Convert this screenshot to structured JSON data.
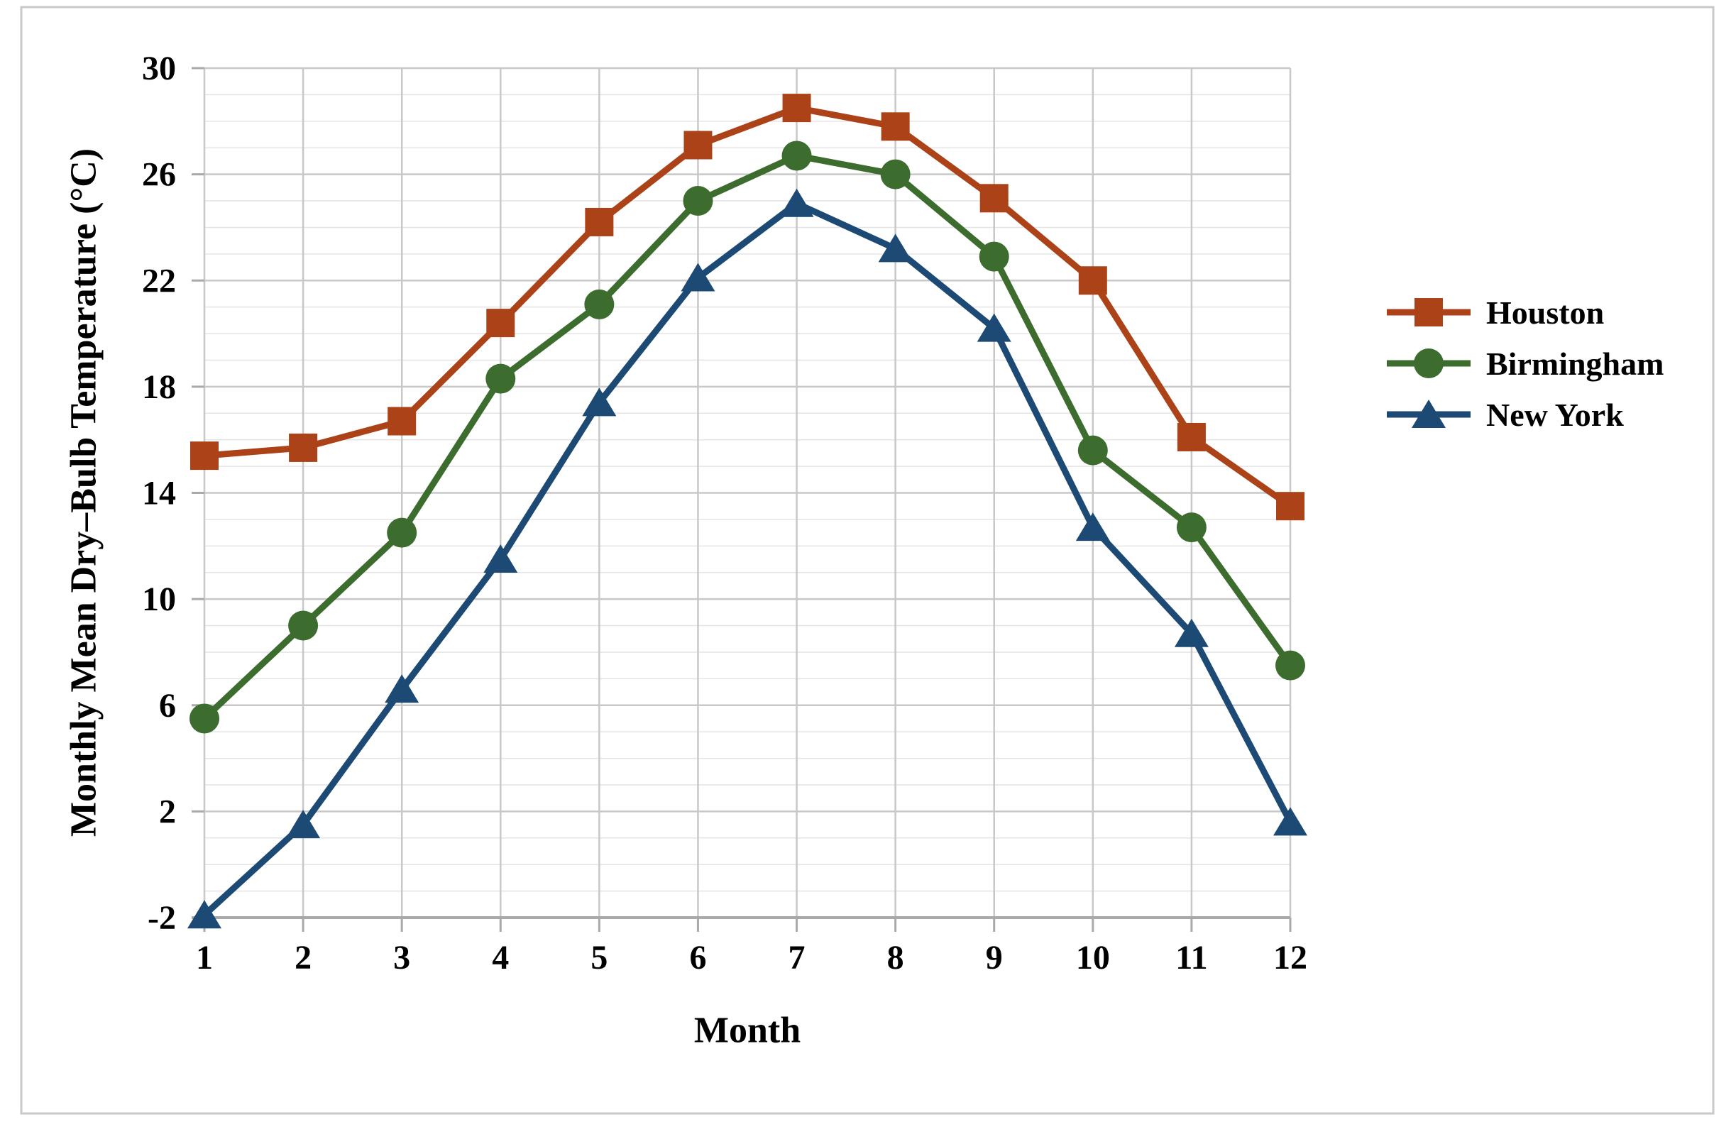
{
  "figure": {
    "background": "#ffffff",
    "border_color": "#c9c9c9",
    "grid_minor_color": "#e4e4e4",
    "grid_major_color": "#c8c8c8",
    "axis_line_color": "#a9a9a9",
    "text_color": "#000000"
  },
  "chart_data": {
    "type": "line",
    "title": "",
    "xlabel": "Month",
    "ylabel": "Monthly Mean Dry–Bulb Temperature (°C)",
    "x": [
      1,
      2,
      3,
      4,
      5,
      6,
      7,
      8,
      9,
      10,
      11,
      12
    ],
    "x_tick_labels": [
      "1",
      "2",
      "3",
      "4",
      "5",
      "6",
      "7",
      "8",
      "9",
      "10",
      "11",
      "12"
    ],
    "y_tick_labels": [
      "30",
      "26",
      "22",
      "18",
      "14",
      "10",
      "6",
      "2",
      "-2"
    ],
    "y_ticks": [
      30,
      26,
      22,
      18,
      14,
      10,
      6,
      2,
      -2
    ],
    "ylim": [
      -2,
      30
    ],
    "xlim": [
      1,
      12
    ],
    "y_minor_step": 1,
    "y_major_step": 4,
    "grid": "both",
    "legend_position": "right-middle",
    "series": [
      {
        "name": "Houston",
        "color": "#ac4318",
        "marker": "square",
        "values": [
          15.4,
          15.7,
          16.7,
          20.4,
          24.2,
          27.1,
          28.5,
          27.8,
          25.1,
          22.0,
          16.1,
          13.5
        ]
      },
      {
        "name": "Birmingham",
        "color": "#3d6d2e",
        "marker": "circle",
        "values": [
          5.5,
          9.0,
          12.5,
          18.3,
          21.1,
          25.0,
          26.7,
          26.0,
          22.9,
          15.6,
          12.7,
          7.5
        ]
      },
      {
        "name": "New York",
        "color": "#1c4a74",
        "marker": "triangle",
        "values": [
          -1.9,
          1.5,
          6.6,
          11.5,
          17.4,
          22.1,
          24.9,
          23.2,
          20.2,
          12.7,
          8.7,
          1.6
        ]
      }
    ]
  }
}
